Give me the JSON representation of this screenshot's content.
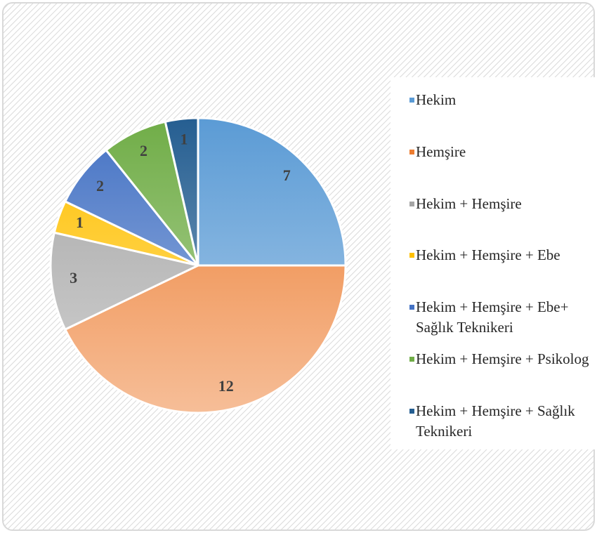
{
  "chart_data": {
    "type": "pie",
    "categories": [
      "Hekim",
      "Hemşire",
      "Hekim + Hemşire",
      "Hekim + Hemşire + Ebe",
      "Hekim + Hemşire + Ebe+ Sağlık Teknikeri",
      "Hekim + Hemşire + Psikolog",
      "Hekim + Hemşire + Sağlık Teknikeri"
    ],
    "values": [
      7,
      12,
      3,
      1,
      2,
      2,
      1
    ],
    "colors": [
      "#5b9bd5",
      "#ed7d31",
      "#a5a5a5",
      "#ffc000",
      "#4472c4",
      "#70ad47",
      "#255e91"
    ],
    "legend": "right"
  }
}
